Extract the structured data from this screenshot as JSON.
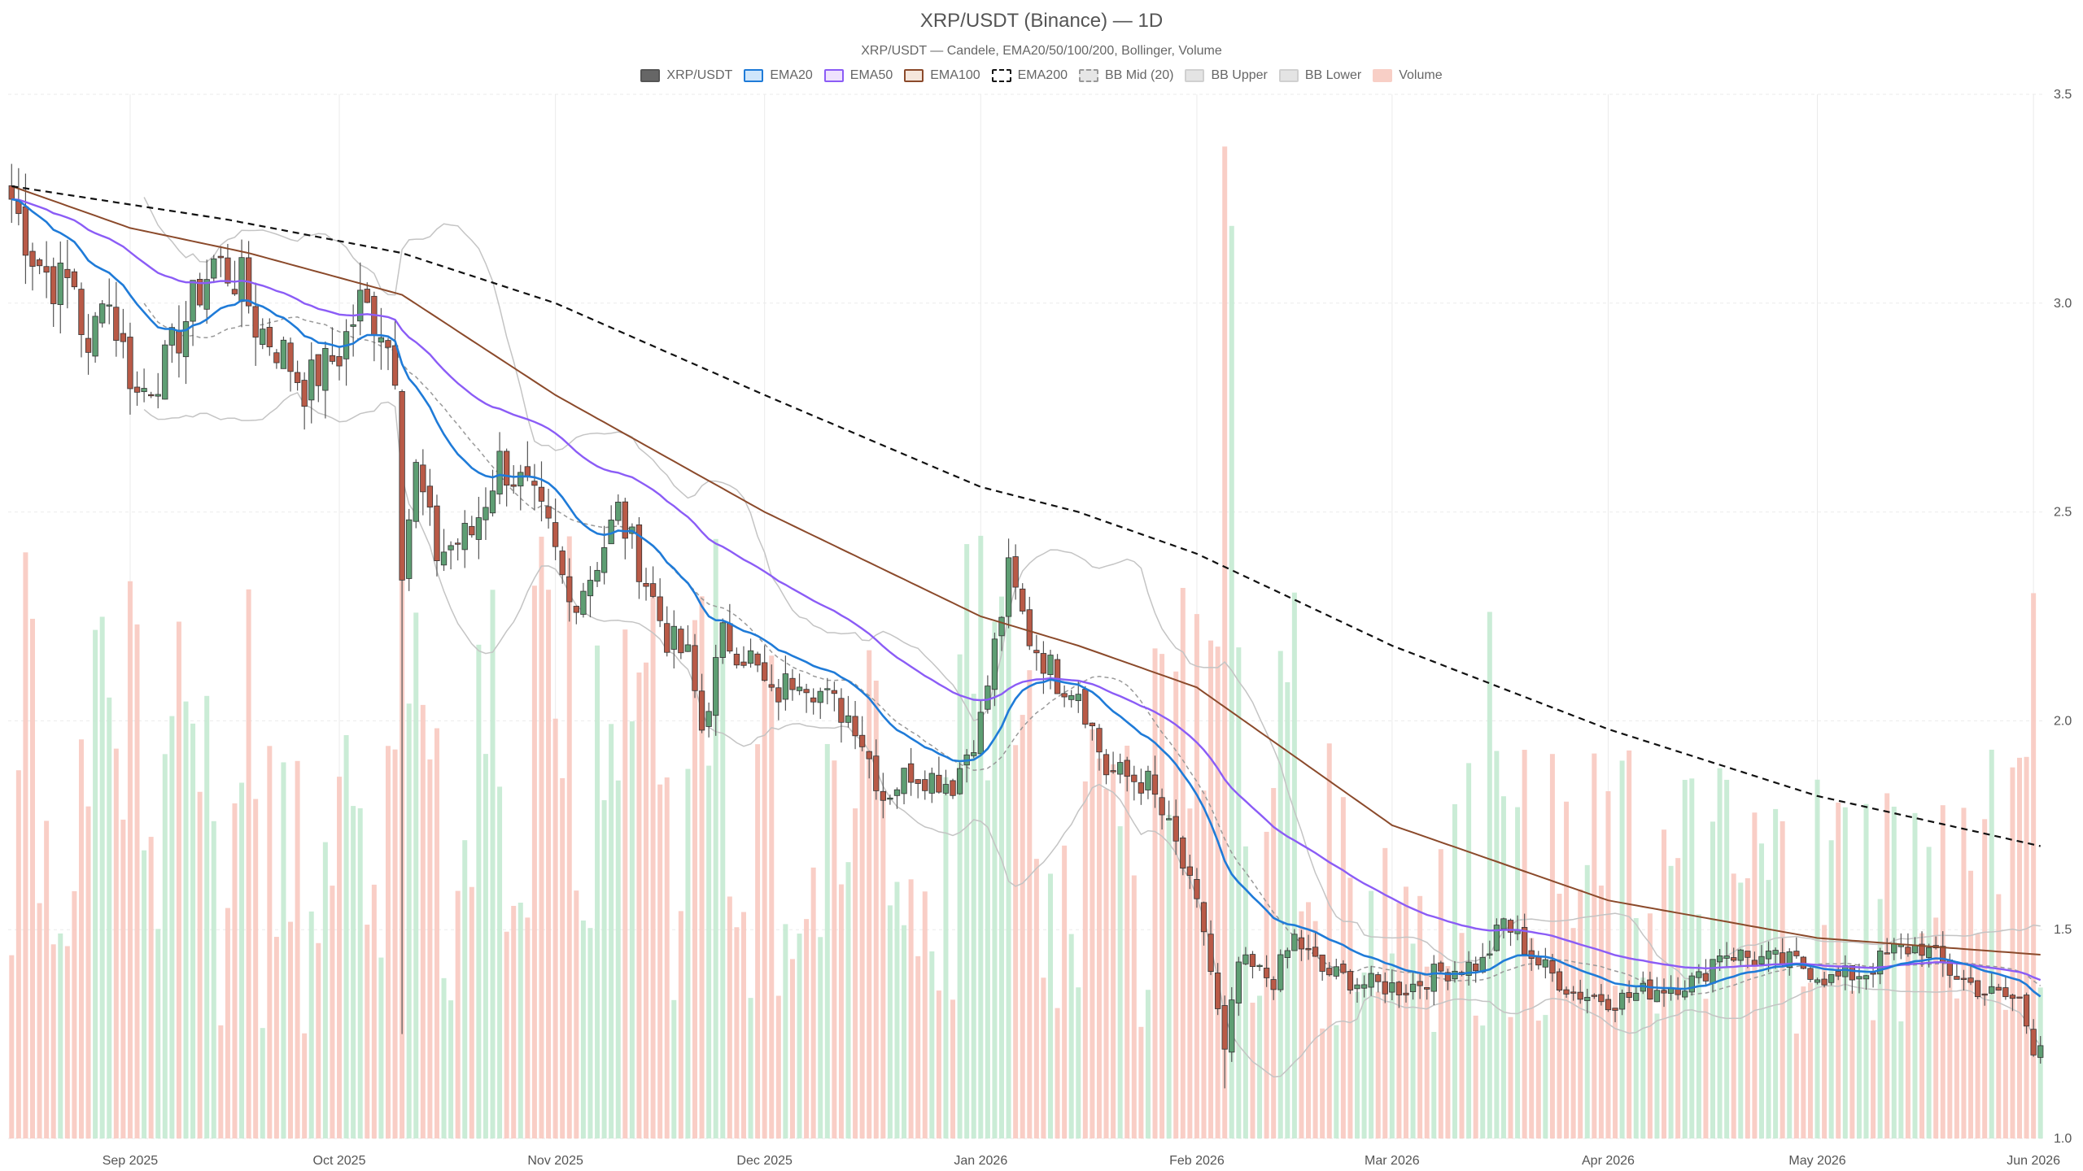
{
  "chart_data": {
    "type": "candlestick",
    "title": "XRP/USDT (Binance) — 1D",
    "subtitle": "XRP/USDT — Candele, EMA20/50/100/200, Bollinger, Volume",
    "ylim": [
      1.0,
      3.5
    ],
    "y_ticks": [
      "1.0",
      "1.5",
      "2.0",
      "2.5",
      "3.0",
      "3.5"
    ],
    "x_ticks": [
      "Sep 2025",
      "Oct 2025",
      "Nov 2025",
      "Dec 2025",
      "Jan 2026",
      "Feb 2026",
      "Mar 2026",
      "Apr 2026",
      "May 2026",
      "Jun 2026"
    ],
    "x_range": [
      "2025-08-15",
      "2026-06-02"
    ],
    "legend": [
      {
        "label": "XRP/USDT",
        "fill": "#666666",
        "stroke": "#555555",
        "dash": false
      },
      {
        "label": "EMA20",
        "fill": "#cfe6fb",
        "stroke": "#1f7bd8",
        "dash": false
      },
      {
        "label": "EMA50",
        "fill": "#efe2fd",
        "stroke": "#8b5cf6",
        "dash": false
      },
      {
        "label": "EMA100",
        "fill": "#f5e6dc",
        "stroke": "#8b4a2b",
        "dash": false
      },
      {
        "label": "EMA200",
        "fill": "#ffffff",
        "stroke": "#111111",
        "dash": true
      },
      {
        "label": "BB Mid (20)",
        "fill": "#e6e6e6",
        "stroke": "#999999",
        "dash": true
      },
      {
        "label": "BB Upper",
        "fill": "#e4e4e4",
        "stroke": "#d0d0d0",
        "dash": false
      },
      {
        "label": "BB Lower",
        "fill": "#e4e4e4",
        "stroke": "#d0d0d0",
        "dash": false
      },
      {
        "label": "Volume",
        "fill": "#f8cfc6",
        "stroke": "#f8cfc6",
        "dash": false
      }
    ],
    "colors": {
      "up": "#5e9e73",
      "down": "#b95a47",
      "wick": "#555555",
      "vol_up": "#c4ead2",
      "vol_down": "#f8c9c0",
      "ema20": "#1f7bd8",
      "ema50": "#8b5cf6",
      "ema100": "#8b4a2b",
      "ema200": "#111111",
      "bb_mid": "#999999",
      "bb_band": "#c4c4c4",
      "grid": "#ebebeb"
    },
    "close_anchors": [
      [
        "2025-08-15",
        3.25
      ],
      [
        "2025-08-18",
        3.12
      ],
      [
        "2025-08-21",
        3.05
      ],
      [
        "2025-08-24",
        3.05
      ],
      [
        "2025-08-26",
        2.85
      ],
      [
        "2025-08-28",
        3.05
      ],
      [
        "2025-09-02",
        2.78
      ],
      [
        "2025-09-06",
        2.85
      ],
      [
        "2025-09-10",
        3.0
      ],
      [
        "2025-09-13",
        3.1
      ],
      [
        "2025-09-17",
        3.05
      ],
      [
        "2025-09-19",
        2.95
      ],
      [
        "2025-09-23",
        2.88
      ],
      [
        "2025-09-26",
        2.8
      ],
      [
        "2025-10-01",
        2.88
      ],
      [
        "2025-10-04",
        3.0
      ],
      [
        "2025-10-07",
        2.95
      ],
      [
        "2025-10-09",
        2.85
      ],
      [
        "2025-10-10",
        2.38
      ],
      [
        "2025-10-12",
        2.6
      ],
      [
        "2025-10-15",
        2.4
      ],
      [
        "2025-10-20",
        2.45
      ],
      [
        "2025-10-24",
        2.62
      ],
      [
        "2025-10-28",
        2.55
      ],
      [
        "2025-10-31",
        2.45
      ],
      [
        "2025-11-03",
        2.28
      ],
      [
        "2025-11-06",
        2.35
      ],
      [
        "2025-11-10",
        2.5
      ],
      [
        "2025-11-13",
        2.38
      ],
      [
        "2025-11-17",
        2.2
      ],
      [
        "2025-11-20",
        2.15
      ],
      [
        "2025-11-22",
        1.98
      ],
      [
        "2025-11-25",
        2.2
      ],
      [
        "2025-11-29",
        2.15
      ],
      [
        "2025-12-02",
        2.05
      ],
      [
        "2025-12-06",
        2.12
      ],
      [
        "2025-12-10",
        2.05
      ],
      [
        "2025-12-14",
        2.0
      ],
      [
        "2025-12-18",
        1.82
      ],
      [
        "2025-12-22",
        1.88
      ],
      [
        "2025-12-28",
        1.85
      ],
      [
        "2026-01-01",
        2.0
      ],
      [
        "2026-01-05",
        2.35
      ],
      [
        "2026-01-08",
        2.2
      ],
      [
        "2026-01-12",
        2.1
      ],
      [
        "2026-01-15",
        2.08
      ],
      [
        "2026-01-19",
        1.88
      ],
      [
        "2026-01-25",
        1.85
      ],
      [
        "2026-01-29",
        1.7
      ],
      [
        "2026-02-02",
        1.5
      ],
      [
        "2026-02-05",
        1.2
      ],
      [
        "2026-02-07",
        1.42
      ],
      [
        "2026-02-12",
        1.38
      ],
      [
        "2026-02-15",
        1.48
      ],
      [
        "2026-02-19",
        1.4
      ],
      [
        "2026-02-25",
        1.37
      ],
      [
        "2026-03-03",
        1.36
      ],
      [
        "2026-03-08",
        1.4
      ],
      [
        "2026-03-14",
        1.42
      ],
      [
        "2026-03-17",
        1.52
      ],
      [
        "2026-03-22",
        1.42
      ],
      [
        "2026-03-27",
        1.35
      ],
      [
        "2026-04-02",
        1.33
      ],
      [
        "2026-04-08",
        1.36
      ],
      [
        "2026-04-14",
        1.38
      ],
      [
        "2026-04-17",
        1.45
      ],
      [
        "2026-04-22",
        1.43
      ],
      [
        "2026-04-28",
        1.42
      ],
      [
        "2026-05-03",
        1.38
      ],
      [
        "2026-05-08",
        1.4
      ],
      [
        "2026-05-12",
        1.45
      ],
      [
        "2026-05-16",
        1.46
      ],
      [
        "2026-05-20",
        1.4
      ],
      [
        "2026-05-25",
        1.35
      ],
      [
        "2026-05-30",
        1.33
      ],
      [
        "2026-06-01",
        1.22
      ],
      [
        "2026-06-02",
        1.24
      ]
    ],
    "ema200_anchors": [
      [
        "2025-08-15",
        3.28
      ],
      [
        "2025-09-15",
        3.2
      ],
      [
        "2025-10-10",
        3.12
      ],
      [
        "2025-11-01",
        3.0
      ],
      [
        "2025-12-01",
        2.78
      ],
      [
        "2026-01-01",
        2.56
      ],
      [
        "2026-01-15",
        2.5
      ],
      [
        "2026-02-01",
        2.4
      ],
      [
        "2026-03-01",
        2.18
      ],
      [
        "2026-04-01",
        1.98
      ],
      [
        "2026-05-01",
        1.82
      ],
      [
        "2026-06-02",
        1.7
      ]
    ],
    "ema100_anchors": [
      [
        "2025-08-15",
        3.28
      ],
      [
        "2025-09-01",
        3.18
      ],
      [
        "2025-09-18",
        3.12
      ],
      [
        "2025-10-10",
        3.02
      ],
      [
        "2025-11-01",
        2.78
      ],
      [
        "2025-12-01",
        2.5
      ],
      [
        "2026-01-01",
        2.25
      ],
      [
        "2026-01-15",
        2.18
      ],
      [
        "2026-02-01",
        2.08
      ],
      [
        "2026-03-01",
        1.75
      ],
      [
        "2026-04-01",
        1.57
      ],
      [
        "2026-05-01",
        1.48
      ],
      [
        "2026-06-02",
        1.44
      ]
    ],
    "volume_peak_date": "2026-02-05",
    "volume_peak_rel": 0.95
  }
}
